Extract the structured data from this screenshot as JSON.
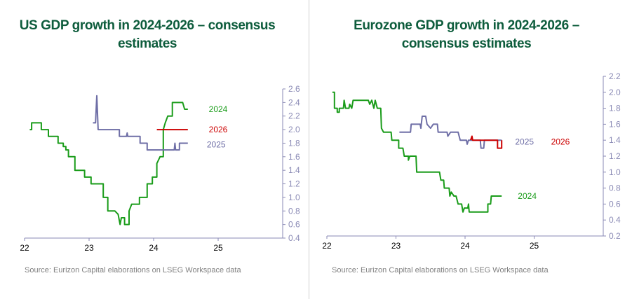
{
  "colors": {
    "s2024": "#1a9c1a",
    "s2025": "#6e6ea6",
    "s2026": "#cc0000",
    "axis": "#8a8ab5",
    "title": "#0d5c3c"
  },
  "chart_data": [
    {
      "type": "line",
      "title": "US GDP growth in 2024-2026 – consensus estimates",
      "source": "Source: Eurizon Capital elaborations on LSEG Workspace data",
      "xlim": [
        22,
        26
      ],
      "ylim": [
        0.4,
        2.6
      ],
      "x_ticks": [
        22,
        23,
        24,
        25
      ],
      "x_tick_labels": [
        "22",
        "23",
        "24",
        "25"
      ],
      "y_ticks": [
        0.4,
        0.6,
        0.8,
        1.0,
        1.2,
        1.4,
        1.6,
        1.8,
        2.0,
        2.2,
        2.4,
        2.6
      ],
      "y_tick_labels": [
        "0.4",
        "0.6",
        "0.8",
        "1.0",
        "1.2",
        "1.4",
        "1.6",
        "1.8",
        "2.0",
        "2.2",
        "2.4",
        "2.6"
      ],
      "y_axis_position": "right",
      "grid": false,
      "series": [
        {
          "name": "2024",
          "color": "#1a9c1a",
          "label_at": [
            25.0,
            2.3
          ],
          "points": [
            [
              22.08,
              2.0
            ],
            [
              22.11,
              2.0
            ],
            [
              22.11,
              2.1
            ],
            [
              22.26,
              2.1
            ],
            [
              22.26,
              2.0
            ],
            [
              22.37,
              2.0
            ],
            [
              22.37,
              1.9
            ],
            [
              22.52,
              1.9
            ],
            [
              22.52,
              1.8
            ],
            [
              22.6,
              1.8
            ],
            [
              22.6,
              1.75
            ],
            [
              22.64,
              1.75
            ],
            [
              22.64,
              1.7
            ],
            [
              22.68,
              1.7
            ],
            [
              22.68,
              1.6
            ],
            [
              22.78,
              1.6
            ],
            [
              22.78,
              1.4
            ],
            [
              22.93,
              1.4
            ],
            [
              22.93,
              1.3
            ],
            [
              23.03,
              1.3
            ],
            [
              23.03,
              1.2
            ],
            [
              23.22,
              1.2
            ],
            [
              23.22,
              1.0
            ],
            [
              23.29,
              1.0
            ],
            [
              23.29,
              0.8
            ],
            [
              23.4,
              0.8
            ],
            [
              23.45,
              0.75
            ],
            [
              23.48,
              0.6
            ],
            [
              23.5,
              0.7
            ],
            [
              23.55,
              0.7
            ],
            [
              23.55,
              0.6
            ],
            [
              23.62,
              0.6
            ],
            [
              23.62,
              0.8
            ],
            [
              23.66,
              0.9
            ],
            [
              23.78,
              0.9
            ],
            [
              23.78,
              1.0
            ],
            [
              23.9,
              1.0
            ],
            [
              23.9,
              1.2
            ],
            [
              23.98,
              1.2
            ],
            [
              23.98,
              1.3
            ],
            [
              24.05,
              1.3
            ],
            [
              24.05,
              1.5
            ],
            [
              24.1,
              1.6
            ],
            [
              24.15,
              1.6
            ],
            [
              24.15,
              2.0
            ],
            [
              24.18,
              2.1
            ],
            [
              24.22,
              2.2
            ],
            [
              24.29,
              2.2
            ],
            [
              24.29,
              2.4
            ],
            [
              24.45,
              2.4
            ],
            [
              24.48,
              2.3
            ],
            [
              24.53,
              2.3
            ]
          ]
        },
        {
          "name": "2026",
          "color": "#cc0000",
          "label_at": [
            25.0,
            2.0
          ],
          "points": [
            [
              24.05,
              2.0
            ],
            [
              24.53,
              2.0
            ]
          ]
        },
        {
          "name": "2025",
          "color": "#6e6ea6",
          "label_at": [
            24.97,
            1.78
          ],
          "points": [
            [
              23.06,
              2.1
            ],
            [
              23.1,
              2.1
            ],
            [
              23.12,
              2.5
            ],
            [
              23.14,
              2.0
            ],
            [
              23.47,
              2.0
            ],
            [
              23.47,
              1.9
            ],
            [
              23.58,
              1.9
            ],
            [
              23.59,
              1.95
            ],
            [
              23.6,
              1.9
            ],
            [
              23.79,
              1.9
            ],
            [
              23.79,
              1.8
            ],
            [
              23.9,
              1.8
            ],
            [
              23.9,
              1.7
            ],
            [
              24.32,
              1.7
            ],
            [
              24.33,
              1.8
            ],
            [
              24.34,
              1.7
            ],
            [
              24.4,
              1.7
            ],
            [
              24.4,
              1.8
            ],
            [
              24.53,
              1.8
            ]
          ]
        }
      ]
    },
    {
      "type": "line",
      "title": "Eurozone GDP growth in 2024-2026 – consensus estimates",
      "source": "Source: Eurizon Capital elaborations on LSEG Workspace data",
      "xlim": [
        22,
        26
      ],
      "ylim": [
        0.2,
        2.2
      ],
      "x_ticks": [
        22,
        23,
        24,
        25
      ],
      "x_tick_labels": [
        "22",
        "23",
        "24",
        "25"
      ],
      "y_ticks": [
        0.2,
        0.4,
        0.6,
        0.8,
        1.0,
        1.2,
        1.4,
        1.6,
        1.8,
        2.0,
        2.2
      ],
      "y_tick_labels": [
        "0.2",
        "0.4",
        "0.6",
        "0.8",
        "1.0",
        "1.2",
        "1.4",
        "1.6",
        "1.8",
        "2.0",
        "2.2"
      ],
      "y_axis_position": "right",
      "grid": false,
      "series": [
        {
          "name": "2024",
          "color": "#1a9c1a",
          "label_at": [
            24.9,
            0.7
          ],
          "points": [
            [
              22.08,
              2.0
            ],
            [
              22.11,
              2.0
            ],
            [
              22.11,
              1.8
            ],
            [
              22.15,
              1.8
            ],
            [
              22.15,
              1.75
            ],
            [
              22.18,
              1.75
            ],
            [
              22.18,
              1.8
            ],
            [
              22.24,
              1.8
            ],
            [
              22.25,
              1.9
            ],
            [
              22.27,
              1.8
            ],
            [
              22.32,
              1.8
            ],
            [
              22.33,
              1.85
            ],
            [
              22.36,
              1.8
            ],
            [
              22.38,
              1.9
            ],
            [
              22.6,
              1.9
            ],
            [
              22.62,
              1.85
            ],
            [
              22.65,
              1.9
            ],
            [
              22.68,
              1.8
            ],
            [
              22.7,
              1.9
            ],
            [
              22.73,
              1.8
            ],
            [
              22.78,
              1.8
            ],
            [
              22.79,
              1.55
            ],
            [
              22.82,
              1.5
            ],
            [
              22.93,
              1.5
            ],
            [
              22.94,
              1.4
            ],
            [
              23.04,
              1.4
            ],
            [
              23.04,
              1.3
            ],
            [
              23.1,
              1.3
            ],
            [
              23.12,
              1.2
            ],
            [
              23.18,
              1.2
            ],
            [
              23.18,
              1.15
            ],
            [
              23.2,
              1.2
            ],
            [
              23.29,
              1.2
            ],
            [
              23.3,
              1.0
            ],
            [
              23.63,
              1.0
            ],
            [
              23.65,
              0.9
            ],
            [
              23.69,
              0.9
            ],
            [
              23.7,
              0.8
            ],
            [
              23.77,
              0.8
            ],
            [
              23.78,
              0.7
            ],
            [
              23.8,
              0.75
            ],
            [
              23.84,
              0.7
            ],
            [
              23.87,
              0.7
            ],
            [
              23.9,
              0.6
            ],
            [
              23.95,
              0.6
            ],
            [
              23.97,
              0.5
            ],
            [
              23.99,
              0.55
            ],
            [
              24.04,
              0.55
            ],
            [
              24.05,
              0.6
            ],
            [
              24.06,
              0.5
            ],
            [
              24.33,
              0.5
            ],
            [
              24.33,
              0.6
            ],
            [
              24.37,
              0.6
            ],
            [
              24.38,
              0.7
            ],
            [
              24.53,
              0.7
            ]
          ]
        },
        {
          "name": "2025",
          "color": "#6e6ea6",
          "label_at": [
            24.86,
            1.38
          ],
          "points": [
            [
              23.05,
              1.5
            ],
            [
              23.21,
              1.5
            ],
            [
              23.22,
              1.6
            ],
            [
              23.35,
              1.6
            ],
            [
              23.36,
              1.55
            ],
            [
              23.38,
              1.7
            ],
            [
              23.43,
              1.7
            ],
            [
              23.45,
              1.6
            ],
            [
              23.5,
              1.55
            ],
            [
              23.54,
              1.6
            ],
            [
              23.6,
              1.6
            ],
            [
              23.61,
              1.5
            ],
            [
              23.74,
              1.5
            ],
            [
              23.75,
              1.45
            ],
            [
              23.79,
              1.5
            ],
            [
              23.9,
              1.5
            ],
            [
              23.93,
              1.4
            ],
            [
              24.02,
              1.4
            ],
            [
              24.03,
              1.35
            ],
            [
              24.05,
              1.4
            ],
            [
              24.22,
              1.4
            ],
            [
              24.23,
              1.3
            ],
            [
              24.27,
              1.3
            ],
            [
              24.28,
              1.4
            ],
            [
              24.53,
              1.4
            ]
          ]
        },
        {
          "name": "2026",
          "color": "#cc0000",
          "label_at": [
            25.38,
            1.38
          ],
          "points": [
            [
              24.08,
              1.4
            ],
            [
              24.1,
              1.45
            ],
            [
              24.11,
              1.4
            ],
            [
              24.47,
              1.4
            ],
            [
              24.47,
              1.3
            ],
            [
              24.53,
              1.3
            ],
            [
              24.53,
              1.4
            ]
          ]
        }
      ]
    }
  ]
}
